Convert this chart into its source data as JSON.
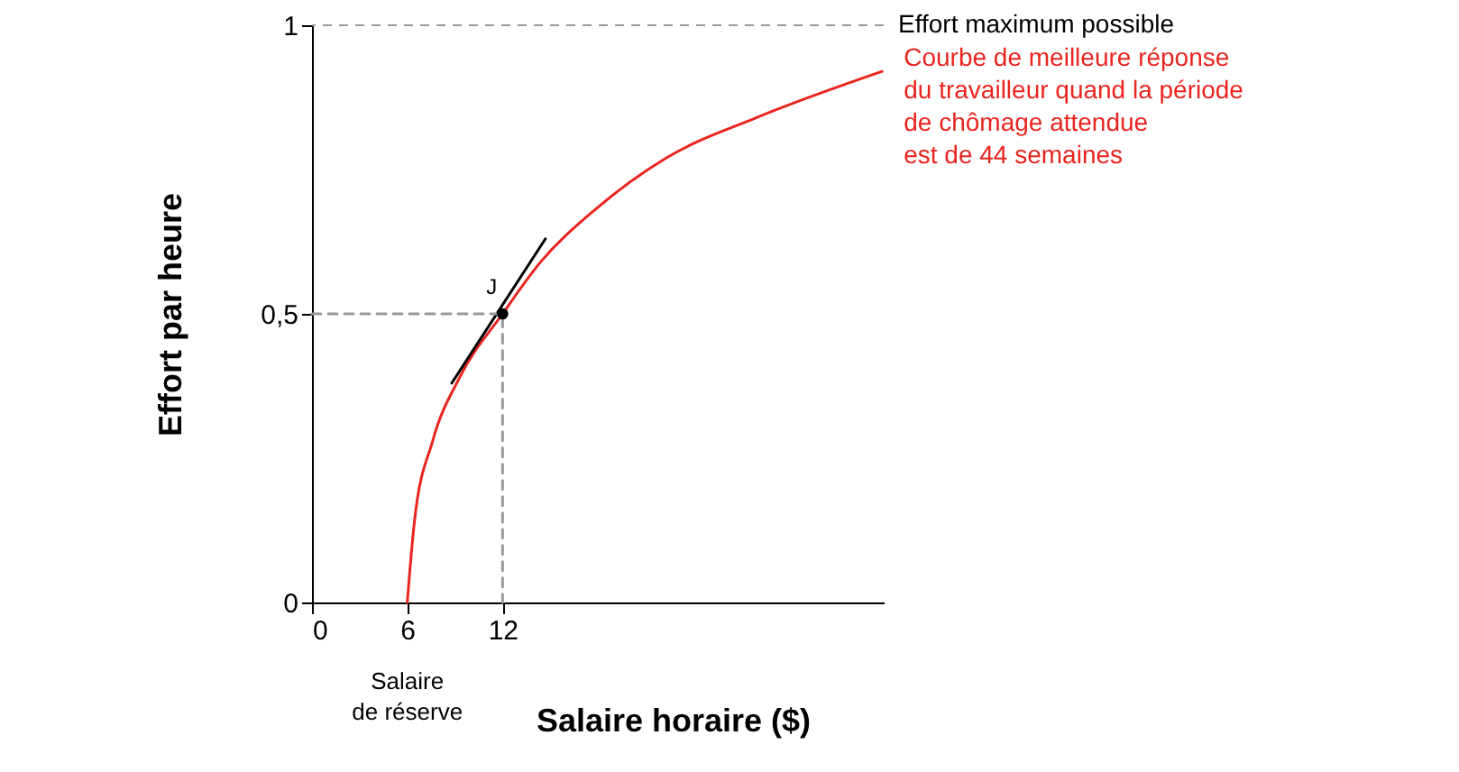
{
  "chart_data": {
    "type": "line",
    "xlabel": "Salaire horaire ($)",
    "ylabel": "Effort par heure",
    "xlim": [
      0,
      36
    ],
    "ylim": [
      0,
      1
    ],
    "xticks": [
      0,
      6,
      12
    ],
    "yticks": [
      0,
      {
        "value": 0.5,
        "label": "0,5"
      },
      1
    ],
    "grid": false,
    "series": [
      {
        "name": "Courbe de meilleure réponse\ndu travailleur quand la période\nde chômage attendue\nest de 44 semaines",
        "color": "#e8251f",
        "line_style": "solid",
        "marker": "none",
        "x": [
          6,
          6.45,
          7.6,
          9.3,
          12,
          14.4,
          17.8,
          22.3,
          28,
          35.9
        ],
        "values": [
          0,
          0.14,
          0.28,
          0.39,
          0.5,
          0.59,
          0.68,
          0.77,
          0.84,
          0.92
        ]
      },
      {
        "color": "#000000",
        "line_style": "solid",
        "marker": "none",
        "x": [
          8.8,
          14.7
        ],
        "values": [
          0.38,
          0.63
        ]
      },
      {
        "color": "#999999",
        "line_style": "dashed",
        "marker": "none",
        "x": [
          0,
          12,
          12
        ],
        "values": [
          0.5,
          0.5,
          0
        ]
      },
      {
        "type": "scatter",
        "color": "#000000",
        "marker": "circle",
        "x": [
          12
        ],
        "values": [
          0.5
        ]
      }
    ],
    "ref_lines": [
      {
        "axis": "y",
        "value": 1,
        "label": "Effort maximum possible",
        "color": "#999999",
        "line_style": "dashed"
      }
    ],
    "annotations": [
      {
        "text": "J",
        "x": 12,
        "y": 0.5
      },
      "Salaire\nde réserve"
    ]
  }
}
